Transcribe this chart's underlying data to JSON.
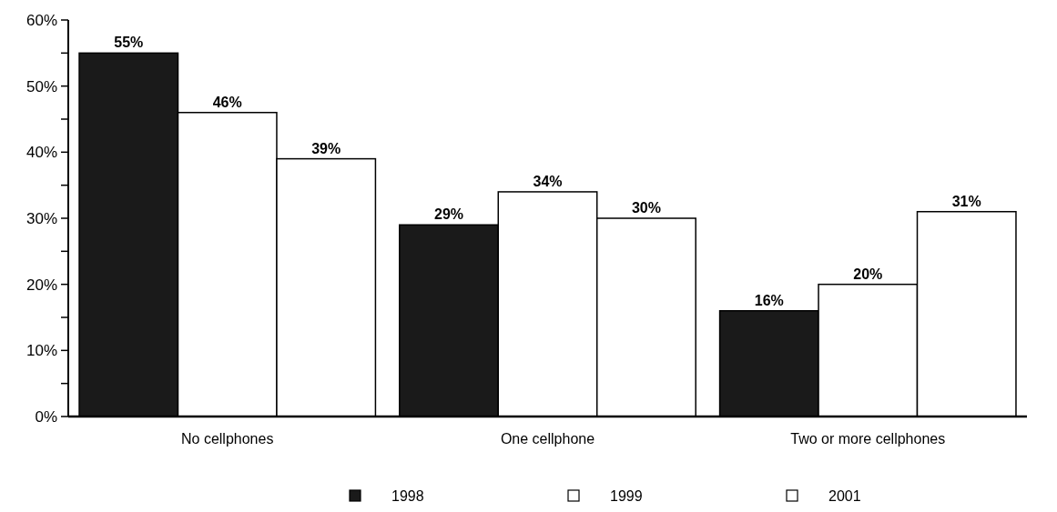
{
  "chart_data": {
    "type": "bar",
    "categories": [
      "No cellphones",
      "One cellphone",
      "Two or more cellphones"
    ],
    "series": [
      {
        "name": "1998",
        "color": "#1a1a1a",
        "values": [
          55,
          29,
          16
        ],
        "value_labels": [
          "55%",
          "29%",
          "16%"
        ]
      },
      {
        "name": "1999",
        "color": "#ffffff",
        "values": [
          46,
          34,
          20
        ],
        "value_labels": [
          "46%",
          "34%",
          "20%"
        ]
      },
      {
        "name": "2001",
        "color": "#ffffff",
        "values": [
          39,
          30,
          31
        ],
        "value_labels": [
          "39%",
          "30%",
          "31%"
        ]
      }
    ],
    "ylim": [
      0,
      60
    ],
    "yticks": [
      {
        "value": 0,
        "label": "0%"
      },
      {
        "value": 5,
        "label": null
      },
      {
        "value": 10,
        "label": "10%"
      },
      {
        "value": 15,
        "label": null
      },
      {
        "value": 20,
        "label": "20%"
      },
      {
        "value": 25,
        "label": null
      },
      {
        "value": 30,
        "label": "30%"
      },
      {
        "value": 35,
        "label": null
      },
      {
        "value": 40,
        "label": "40%"
      },
      {
        "value": 45,
        "label": null
      },
      {
        "value": 50,
        "label": "50%"
      },
      {
        "value": 55,
        "label": null
      },
      {
        "value": 60,
        "label": "60%"
      }
    ],
    "grid": false,
    "legend": "bottom"
  }
}
